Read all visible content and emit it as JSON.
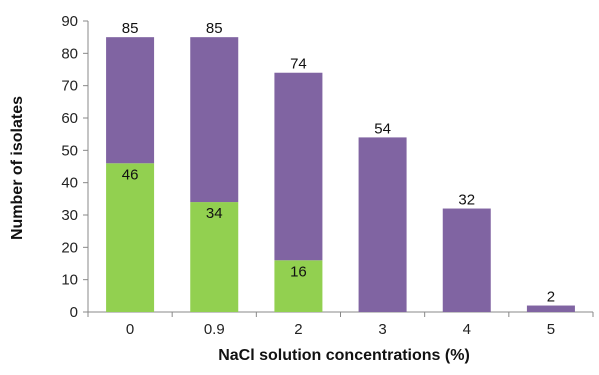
{
  "chart_data": {
    "type": "bar",
    "stacked": true,
    "title": "",
    "xlabel": "NaCl solution concentrations (%)",
    "ylabel": "Number of isolates",
    "categories": [
      "0",
      "0.9",
      "2",
      "3",
      "4",
      "5"
    ],
    "ylim": [
      0,
      90
    ],
    "yticks": [
      0,
      10,
      20,
      30,
      40,
      50,
      60,
      70,
      80,
      90
    ],
    "grid": false,
    "legend": "none",
    "series": [
      {
        "color": "#92d050",
        "values": [
          46,
          34,
          16,
          0,
          0,
          0
        ],
        "labels": [
          "46",
          "34",
          "16",
          "",
          "",
          ""
        ]
      },
      {
        "color": "#8064a2",
        "values": [
          39,
          51,
          58,
          54,
          32,
          2
        ],
        "labels": [
          "",
          "",
          "",
          "",
          "",
          ""
        ]
      }
    ],
    "totals": [
      85,
      85,
      74,
      54,
      32,
      2
    ],
    "axis_color": "#888888"
  }
}
